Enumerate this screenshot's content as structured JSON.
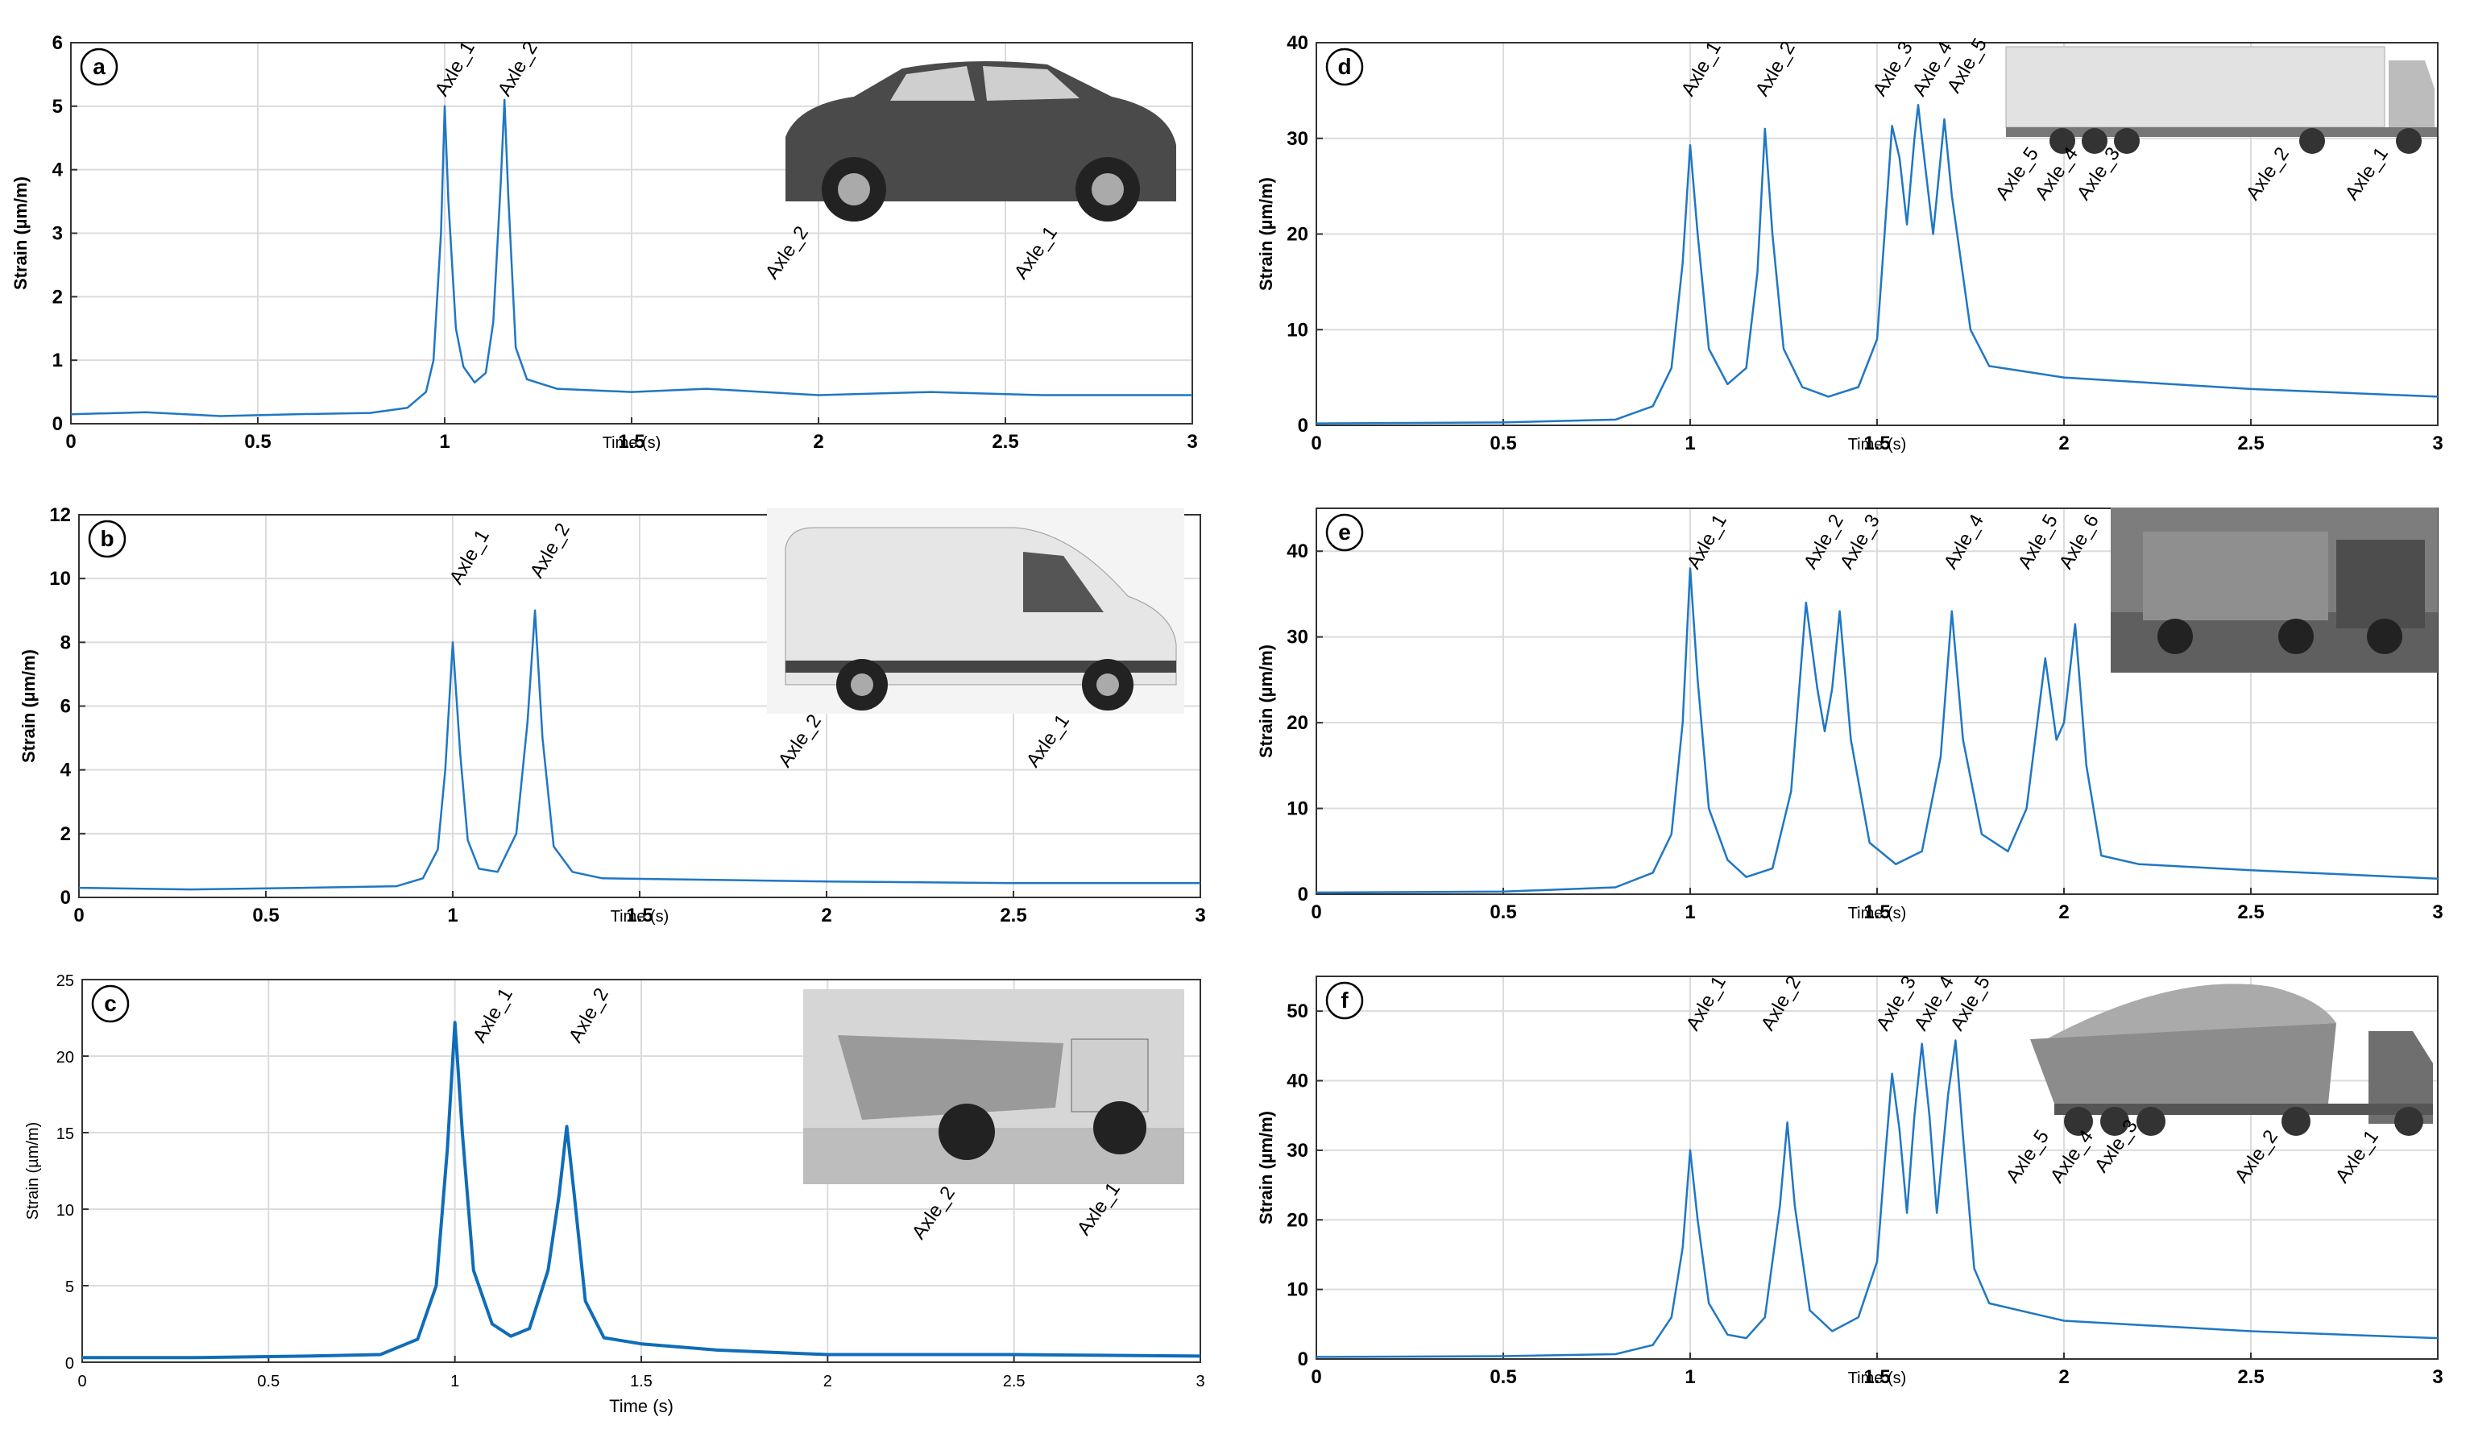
{
  "chart_data": [
    {
      "type": "line",
      "label": "a",
      "ylabel": "Strain (µm/m)",
      "xlabel": "Time (s)",
      "color": "#1f77c4",
      "grid": true,
      "xlim": [
        0,
        3
      ],
      "xticks": [
        0,
        0.5,
        1,
        1.5,
        2,
        2.5,
        3
      ],
      "ylim": [
        0,
        6
      ],
      "yticks": [
        0,
        1,
        2,
        3,
        4,
        5,
        6
      ],
      "x": [
        0,
        0.2,
        0.4,
        0.6,
        0.8,
        0.9,
        0.95,
        0.97,
        0.99,
        1.0,
        1.01,
        1.03,
        1.05,
        1.08,
        1.11,
        1.13,
        1.15,
        1.16,
        1.17,
        1.19,
        1.22,
        1.3,
        1.5,
        1.7,
        2.0,
        2.3,
        2.6,
        3.0
      ],
      "values": [
        0.15,
        0.18,
        0.12,
        0.15,
        0.17,
        0.25,
        0.5,
        1.0,
        3.0,
        5.0,
        3.5,
        1.5,
        0.9,
        0.65,
        0.8,
        1.6,
        3.8,
        5.1,
        3.6,
        1.2,
        0.7,
        0.55,
        0.5,
        0.55,
        0.45,
        0.5,
        0.45,
        0.45
      ],
      "peak_labels": [
        "Axle_1",
        "Axle_2"
      ],
      "vehicle_labels": [
        "Axle_2",
        "Axle_1"
      ]
    },
    {
      "type": "line",
      "label": "b",
      "ylabel": "Strain (µm/m)",
      "xlabel": "Time (s)",
      "color": "#1f77c4",
      "grid": true,
      "xlim": [
        0,
        3
      ],
      "xticks": [
        0,
        0.5,
        1,
        1.5,
        2,
        2.5,
        3
      ],
      "ylim": [
        0,
        12
      ],
      "yticks": [
        0,
        2,
        4,
        6,
        8,
        10,
        12
      ],
      "x": [
        0,
        0.3,
        0.6,
        0.85,
        0.92,
        0.96,
        0.98,
        1.0,
        1.02,
        1.04,
        1.07,
        1.12,
        1.17,
        1.2,
        1.22,
        1.24,
        1.27,
        1.32,
        1.4,
        1.7,
        2.0,
        2.5,
        3.0
      ],
      "values": [
        0.3,
        0.25,
        0.3,
        0.35,
        0.6,
        1.5,
        4.0,
        8.0,
        4.5,
        1.8,
        0.9,
        0.8,
        2.0,
        5.5,
        9.0,
        5.0,
        1.6,
        0.8,
        0.6,
        0.55,
        0.5,
        0.45,
        0.45
      ],
      "peak_labels": [
        "Axle_1",
        "Axle_2"
      ],
      "vehicle_labels": [
        "Axle_2",
        "Axle_1"
      ]
    },
    {
      "type": "line",
      "label": "c",
      "ylabel": "Strain (µm/m)",
      "xlabel": "Time (s)",
      "color": "#0f6db8",
      "grid": true,
      "xlim": [
        0,
        3
      ],
      "xticks": [
        0,
        0.5,
        1,
        1.5,
        2,
        2.5,
        3
      ],
      "ylim": [
        0,
        25
      ],
      "yticks": [
        0,
        5,
        10,
        15,
        20,
        25
      ],
      "x": [
        0,
        0.3,
        0.6,
        0.8,
        0.9,
        0.95,
        0.98,
        1.0,
        1.02,
        1.05,
        1.1,
        1.15,
        1.2,
        1.25,
        1.28,
        1.3,
        1.32,
        1.35,
        1.4,
        1.5,
        1.7,
        2.0,
        2.5,
        3.0
      ],
      "values": [
        0.3,
        0.3,
        0.4,
        0.5,
        1.5,
        5,
        14,
        22.2,
        15,
        6,
        2.5,
        1.7,
        2.2,
        6,
        11,
        15.4,
        11,
        4,
        1.6,
        1.2,
        0.8,
        0.5,
        0.5,
        0.4
      ],
      "peak_labels": [
        "Axle_1",
        "Axle_2"
      ],
      "vehicle_labels": [
        "Axle_2",
        "Axle_1"
      ]
    },
    {
      "type": "line",
      "label": "d",
      "ylabel": "Strain (µm/m)",
      "xlabel": "Time (s)",
      "color": "#1f77c4",
      "grid": true,
      "xlim": [
        0,
        3
      ],
      "xticks": [
        0,
        0.5,
        1,
        1.5,
        2,
        2.5,
        3
      ],
      "ylim": [
        0,
        40
      ],
      "yticks": [
        0,
        10,
        20,
        30,
        40
      ],
      "x": [
        0,
        0.5,
        0.8,
        0.9,
        0.95,
        0.98,
        1.0,
        1.02,
        1.05,
        1.1,
        1.15,
        1.18,
        1.2,
        1.22,
        1.25,
        1.3,
        1.37,
        1.45,
        1.5,
        1.52,
        1.54,
        1.56,
        1.58,
        1.6,
        1.61,
        1.62,
        1.65,
        1.67,
        1.68,
        1.7,
        1.75,
        1.8,
        2.0,
        2.5,
        3.0
      ],
      "values": [
        0.2,
        0.3,
        0.6,
        2,
        6,
        17,
        29.3,
        20,
        8,
        4.3,
        6,
        16,
        31,
        20,
        8,
        4,
        3,
        4,
        9,
        20,
        31.3,
        28,
        21,
        30,
        33.5,
        30,
        20,
        28,
        32,
        24,
        10,
        6.2,
        5,
        3.8,
        3
      ],
      "peak_labels": [
        "Axle_1",
        "Axle_2",
        "Axle_3",
        "Axle_4",
        "Axle_5"
      ],
      "vehicle_labels": [
        "Axle_5",
        "Axle_4",
        "Axle_3",
        "Axle_2",
        "Axle_1"
      ]
    },
    {
      "type": "line",
      "label": "e",
      "ylabel": "Strain (µm/m)",
      "xlabel": "Time (s)",
      "color": "#1f77c4",
      "grid": true,
      "xlim": [
        0,
        3
      ],
      "xticks": [
        0,
        0.5,
        1,
        1.5,
        2,
        2.5,
        3
      ],
      "ylim": [
        0,
        45
      ],
      "yticks": [
        0,
        10,
        20,
        30,
        40
      ],
      "x": [
        0,
        0.5,
        0.8,
        0.9,
        0.95,
        0.98,
        1.0,
        1.02,
        1.05,
        1.1,
        1.15,
        1.22,
        1.27,
        1.31,
        1.34,
        1.36,
        1.38,
        1.4,
        1.43,
        1.48,
        1.55,
        1.62,
        1.67,
        1.7,
        1.73,
        1.78,
        1.85,
        1.9,
        1.95,
        1.98,
        2.0,
        2.03,
        2.06,
        2.1,
        2.2,
        2.5,
        3.0
      ],
      "values": [
        0.2,
        0.3,
        0.8,
        2.5,
        7,
        20,
        38,
        25,
        10,
        4,
        2,
        3,
        12,
        34,
        24,
        19,
        24,
        33,
        18,
        6,
        3.5,
        5,
        16,
        33,
        18,
        7,
        5,
        10,
        27.5,
        18,
        20,
        31.5,
        15,
        4.5,
        3.5,
        2.8,
        1.8
      ],
      "peak_labels": [
        "Axle_1",
        "Axle_2",
        "Axle_3",
        "Axle_4",
        "Axle_5",
        "Axle_6"
      ]
    },
    {
      "type": "line",
      "label": "f",
      "ylabel": "Strain (µm/m)",
      "xlabel": "Time (s)",
      "color": "#1f77c4",
      "grid": true,
      "xlim": [
        0,
        3
      ],
      "xticks": [
        0,
        0.5,
        1,
        1.5,
        2,
        2.5,
        3
      ],
      "ylim": [
        0,
        55
      ],
      "yticks": [
        0,
        10,
        20,
        30,
        40,
        50
      ],
      "x": [
        0,
        0.5,
        0.8,
        0.9,
        0.95,
        0.98,
        1.0,
        1.02,
        1.05,
        1.1,
        1.15,
        1.2,
        1.24,
        1.26,
        1.28,
        1.32,
        1.38,
        1.45,
        1.5,
        1.52,
        1.54,
        1.56,
        1.58,
        1.6,
        1.62,
        1.64,
        1.66,
        1.69,
        1.71,
        1.73,
        1.76,
        1.8,
        2.0,
        2.5,
        3.0
      ],
      "values": [
        0.3,
        0.4,
        0.7,
        2,
        6,
        16,
        30,
        20,
        8,
        3.5,
        3,
        6,
        22,
        34,
        22,
        7,
        4,
        6,
        14,
        28,
        41,
        33,
        21,
        35,
        45.3,
        35,
        21,
        38,
        45.8,
        32,
        13,
        8,
        5.5,
        4,
        3
      ],
      "peak_labels": [
        "Axle_1",
        "Axle_2",
        "Axle_3",
        "Axle_4",
        "Axle_5"
      ],
      "vehicle_labels": [
        "Axle_5",
        "Axle_4",
        "Axle_3",
        "Axle_2",
        "Axle_1"
      ]
    }
  ]
}
